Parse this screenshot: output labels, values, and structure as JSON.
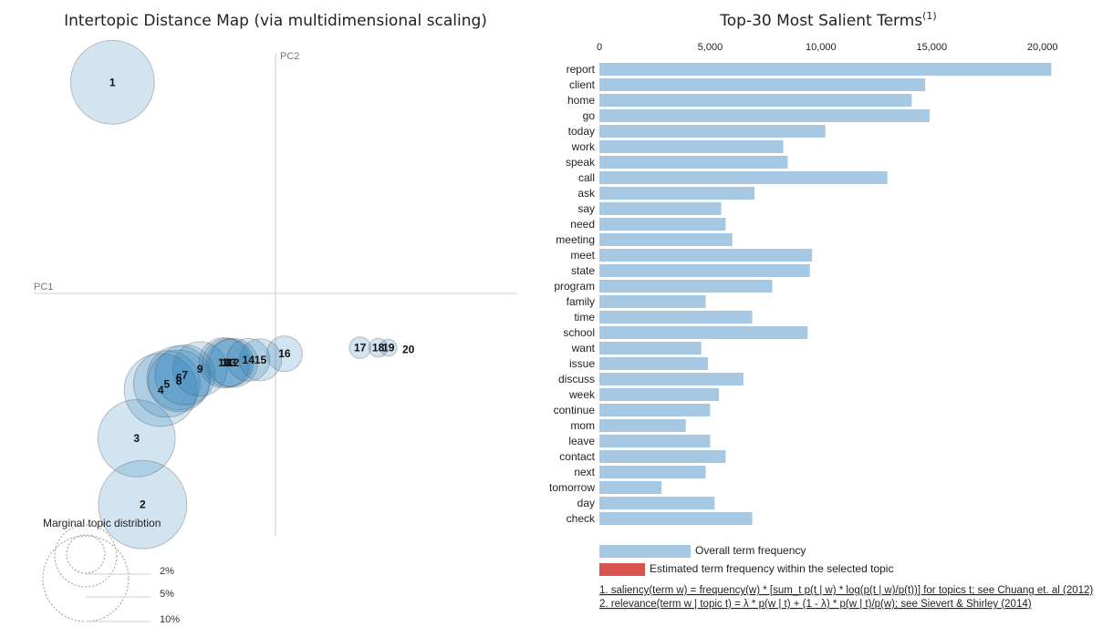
{
  "left_panel": {
    "title": "Intertopic Distance Map (via multidimensional scaling)",
    "pc1_label": "PC1",
    "pc2_label": "PC2",
    "marginal_label": "Marginal topic distribtion",
    "marginal_pcts": [
      "2%",
      "5%",
      "10%"
    ]
  },
  "right_panel": {
    "title": "Top-30 Most Salient Terms",
    "title_sup": "(1)",
    "legend_overall": "Overall term frequency",
    "legend_estimated": "Estimated term frequency within the selected topic",
    "footnote1": "1. saliency(term w) = frequency(w) * [sum_t p(t | w) * log(p(t | w)/p(t))] for topics t; see Chuang et. al (2012)",
    "footnote2": "2. relevance(term w | topic t) = λ * p(w | t) + (1 - λ) * p(w | t)/p(w); see Sievert & Shirley (2014)"
  },
  "colors": {
    "bar": "#a6c8e2",
    "estimated": "#d9534f",
    "circle_fill": "#1f77b4",
    "axis": "#cccccc"
  },
  "chart_data": [
    {
      "type": "scatter",
      "title": "Intertopic Distance Map (via multidimensional scaling)",
      "xlabel": "PC1",
      "ylabel": "PC2",
      "xlim": [
        -0.4,
        0.4
      ],
      "ylim": [
        -0.4,
        0.4
      ],
      "points": [
        {
          "label": "1",
          "x": -0.27,
          "y": 0.35,
          "size": 10.0
        },
        {
          "label": "2",
          "x": -0.22,
          "y": -0.35,
          "size": 11.1
        },
        {
          "label": "3",
          "x": -0.23,
          "y": -0.24,
          "size": 8.5
        },
        {
          "label": "4",
          "x": -0.19,
          "y": -0.16,
          "size": 7.6
        },
        {
          "label": "5",
          "x": -0.18,
          "y": -0.15,
          "size": 6.3
        },
        {
          "label": "6",
          "x": -0.16,
          "y": -0.14,
          "size": 5.8
        },
        {
          "label": "7",
          "x": -0.15,
          "y": -0.135,
          "size": 5.1
        },
        {
          "label": "8",
          "x": -0.16,
          "y": -0.145,
          "size": 5.4
        },
        {
          "label": "9",
          "x": -0.125,
          "y": -0.125,
          "size": 4.2
        },
        {
          "label": "10",
          "x": -0.085,
          "y": -0.115,
          "size": 3.6
        },
        {
          "label": "11",
          "x": -0.08,
          "y": -0.115,
          "size": 3.4
        },
        {
          "label": "12",
          "x": -0.07,
          "y": -0.115,
          "size": 3.4
        },
        {
          "label": "13",
          "x": -0.075,
          "y": -0.115,
          "size": 3.2
        },
        {
          "label": "14",
          "x": -0.045,
          "y": -0.11,
          "size": 2.6
        },
        {
          "label": "15",
          "x": -0.025,
          "y": -0.11,
          "size": 2.5
        },
        {
          "label": "16",
          "x": 0.015,
          "y": -0.1,
          "size": 1.8
        },
        {
          "label": "17",
          "x": 0.14,
          "y": -0.09,
          "size": 0.66
        },
        {
          "label": "18",
          "x": 0.17,
          "y": -0.09,
          "size": 0.5
        },
        {
          "label": "19",
          "x": 0.187,
          "y": -0.09,
          "size": 0.41
        },
        {
          "label": "20",
          "x": 0.22,
          "y": -0.093,
          "size": 0.0
        }
      ]
    },
    {
      "type": "bar",
      "orientation": "horizontal",
      "title": "Top-30 Most Salient Terms",
      "xlim": [
        0,
        22000
      ],
      "xticks": [
        0,
        5000,
        10000,
        15000,
        20000
      ],
      "xtick_labels": [
        "0",
        "5,000",
        "10,000",
        "15,000",
        "20,000"
      ],
      "categories": [
        "report",
        "client",
        "home",
        "go",
        "today",
        "work",
        "speak",
        "call",
        "ask",
        "say",
        "need",
        "meeting",
        "meet",
        "state",
        "program",
        "family",
        "time",
        "school",
        "want",
        "issue",
        "discuss",
        "week",
        "continue",
        "mom",
        "leave",
        "contact",
        "next",
        "tomorrow",
        "day",
        "check"
      ],
      "values": [
        20400,
        14700,
        14100,
        14900,
        10200,
        8300,
        8500,
        13000,
        7000,
        5500,
        5700,
        6000,
        9600,
        9500,
        7800,
        4800,
        6900,
        9400,
        4600,
        4900,
        6500,
        5400,
        5000,
        3900,
        5000,
        5700,
        4800,
        2800,
        5200,
        6900
      ]
    }
  ]
}
